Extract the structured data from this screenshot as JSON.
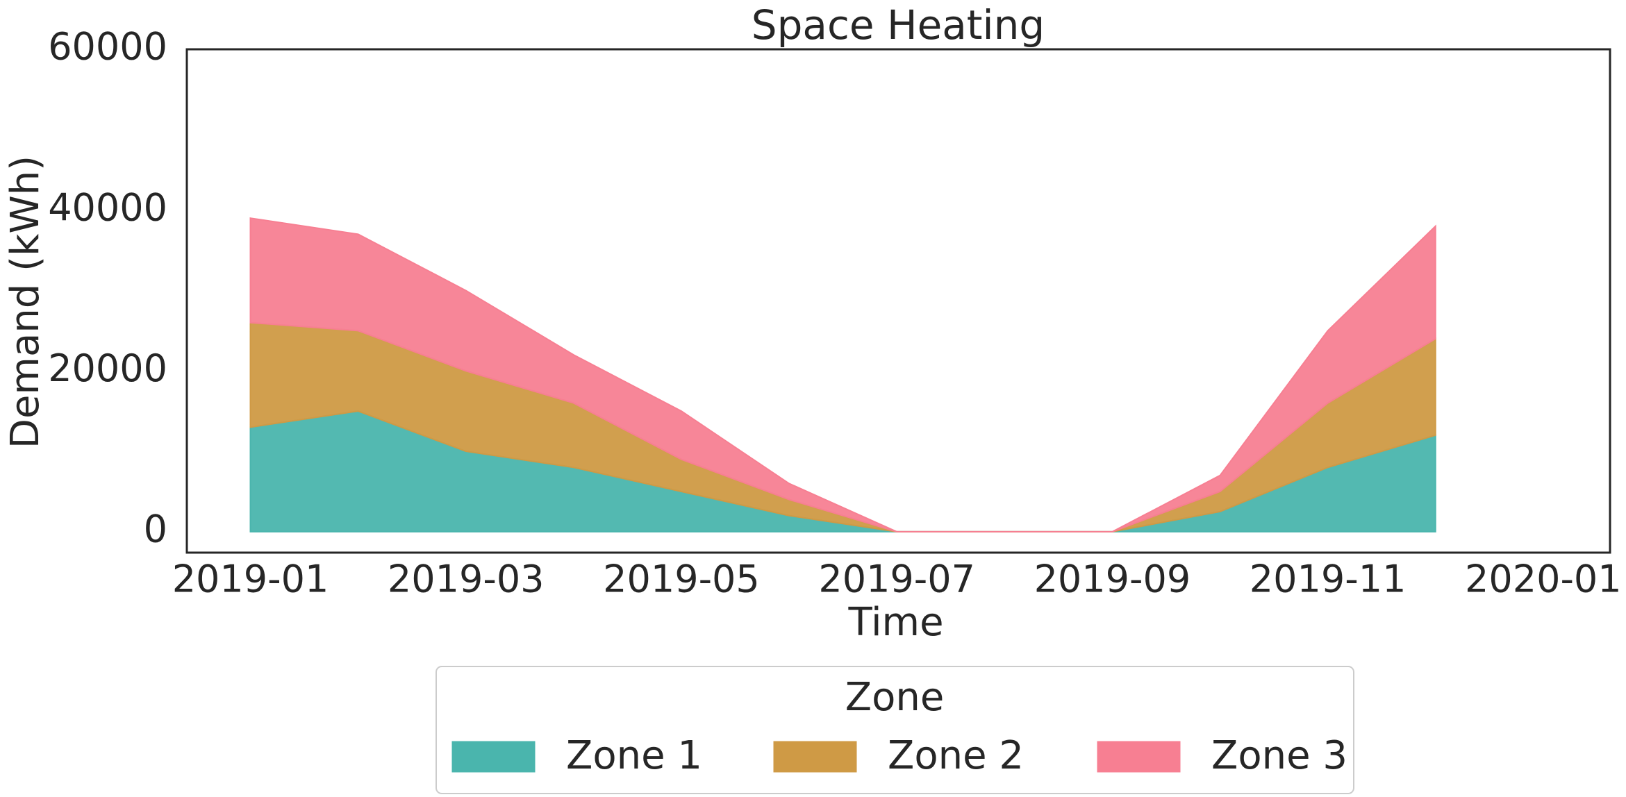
{
  "chart_data": {
    "type": "area",
    "stacked": true,
    "title": "Space Heating",
    "xlabel": "Time",
    "ylabel": "Demand (kWh)",
    "x": [
      "2019-01",
      "2019-02",
      "2019-03",
      "2019-04",
      "2019-05",
      "2019-06",
      "2019-07",
      "2019-08",
      "2019-09",
      "2019-10",
      "2019-11",
      "2019-12"
    ],
    "series": [
      {
        "name": "Zone 1",
        "color": "#4ab5ad",
        "values": [
          13000,
          15000,
          10000,
          8000,
          5000,
          2000,
          0,
          0,
          0,
          2500,
          8000,
          12000
        ]
      },
      {
        "name": "Zone 2",
        "color": "#cf9a45",
        "values": [
          13000,
          10000,
          10000,
          8000,
          4000,
          2000,
          0,
          0,
          0,
          2500,
          8000,
          12000
        ]
      },
      {
        "name": "Zone 3",
        "color": "#f77f92",
        "values": [
          13000,
          12000,
          10000,
          6000,
          6000,
          2000,
          0,
          0,
          0,
          2000,
          9000,
          14000
        ]
      }
    ],
    "ylim": [
      -2600,
      60000
    ],
    "yticks": [
      0,
      20000,
      40000,
      60000
    ],
    "xticks": [
      "2019-01",
      "2019-03",
      "2019-05",
      "2019-07",
      "2019-09",
      "2019-11",
      "2020-01"
    ],
    "legend_title": "Zone",
    "legend": "lower center",
    "grid": false
  }
}
